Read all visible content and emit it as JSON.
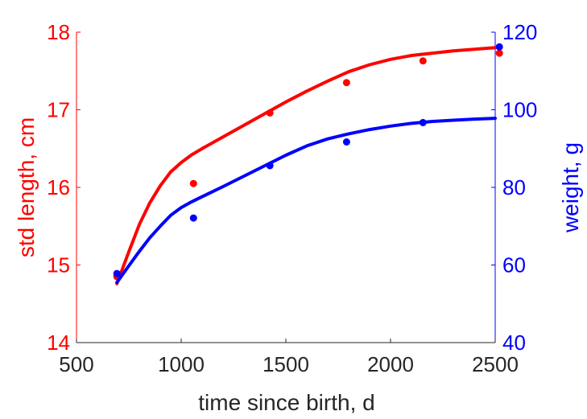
{
  "chart_data": {
    "type": "scatter",
    "xlabel": "time since birth, d",
    "ylabel_left": "std length, cm",
    "ylabel_right": "weight, g",
    "xlim": [
      500,
      2500
    ],
    "ylim_left": [
      14,
      18
    ],
    "ylim_right": [
      40,
      120
    ],
    "xticks": [
      "500",
      "1000",
      "1500",
      "2000",
      "2500"
    ],
    "yticks_left": [
      "14",
      "15",
      "16",
      "17",
      "18"
    ],
    "yticks_right": [
      "40",
      "60",
      "80",
      "100",
      "120"
    ],
    "grid": false,
    "colors": {
      "length": "#ff0000",
      "weight": "#0000ff",
      "axis_text": "#262626"
    },
    "series": [
      {
        "axis": "left",
        "markers": {
          "x": [
            693,
            1059,
            1424,
            1790,
            2155,
            2520
          ],
          "y": [
            14.85,
            16.05,
            16.96,
            17.35,
            17.63,
            17.73
          ]
        },
        "curve": {
          "x": [
            693,
            750,
            800,
            850,
            900,
            950,
            1000,
            1050,
            1100,
            1200,
            1300,
            1400,
            1500,
            1600,
            1700,
            1800,
            1900,
            2000,
            2100,
            2200,
            2300,
            2400,
            2500
          ],
          "y": [
            14.76,
            15.17,
            15.52,
            15.8,
            16.02,
            16.2,
            16.32,
            16.42,
            16.5,
            16.65,
            16.8,
            16.95,
            17.1,
            17.24,
            17.37,
            17.49,
            17.58,
            17.65,
            17.7,
            17.73,
            17.76,
            17.78,
            17.8
          ]
        }
      },
      {
        "axis": "right",
        "markers": {
          "x": [
            693,
            1059,
            1424,
            1790,
            2155,
            2520
          ],
          "y": [
            57.8,
            72.1,
            85.6,
            91.7,
            96.7,
            116.2
          ]
        },
        "curve": {
          "x": [
            693,
            750,
            800,
            850,
            900,
            950,
            1000,
            1050,
            1100,
            1200,
            1300,
            1400,
            1500,
            1600,
            1700,
            1800,
            1900,
            2000,
            2100,
            2200,
            2300,
            2400,
            2500
          ],
          "y": [
            55.5,
            59.8,
            63.5,
            67.0,
            70.0,
            72.8,
            74.8,
            76.3,
            77.6,
            80.2,
            82.9,
            85.6,
            88.3,
            90.7,
            92.5,
            93.8,
            94.9,
            95.8,
            96.5,
            97.0,
            97.3,
            97.6,
            97.8
          ]
        }
      }
    ]
  }
}
